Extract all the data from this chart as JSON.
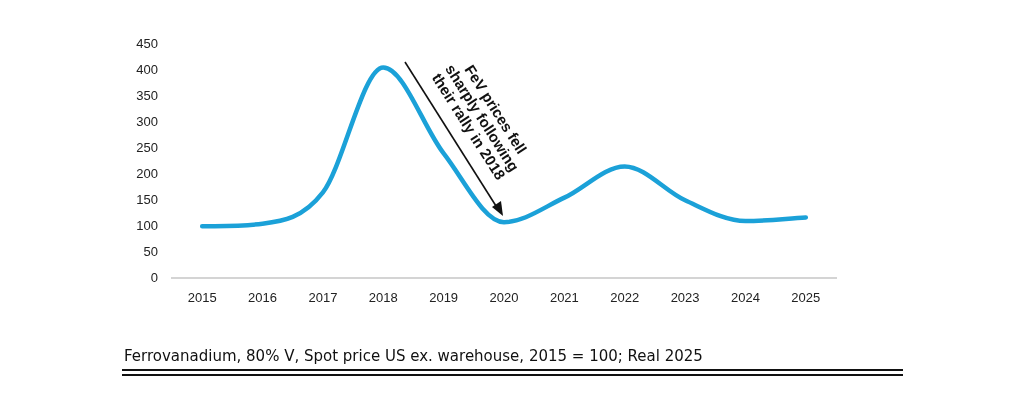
{
  "chart_data": {
    "type": "line",
    "categories": [
      "2015",
      "2016",
      "2017",
      "2018",
      "2019",
      "2020",
      "2021",
      "2022",
      "2023",
      "2024",
      "2025"
    ],
    "series": [
      {
        "color": "#1ba1d8",
        "values": [
          100,
          105,
          165,
          405,
          240,
          108,
          155,
          215,
          150,
          110,
          117
        ]
      }
    ],
    "ylim": [
      0,
      450
    ],
    "yticks": [
      0,
      50,
      100,
      150,
      200,
      250,
      300,
      350,
      400,
      450
    ],
    "grid": false,
    "legend": false,
    "marker": "none",
    "line_style": "solid",
    "annotations": [
      {
        "text": "FeV prices fell sharply following their rally in 2018",
        "x": "2020",
        "y": 120
      },
      "Ferrovanadium, 80% V, Spot price US ex. warehouse, 2015 = 100; Real 2025"
    ]
  }
}
